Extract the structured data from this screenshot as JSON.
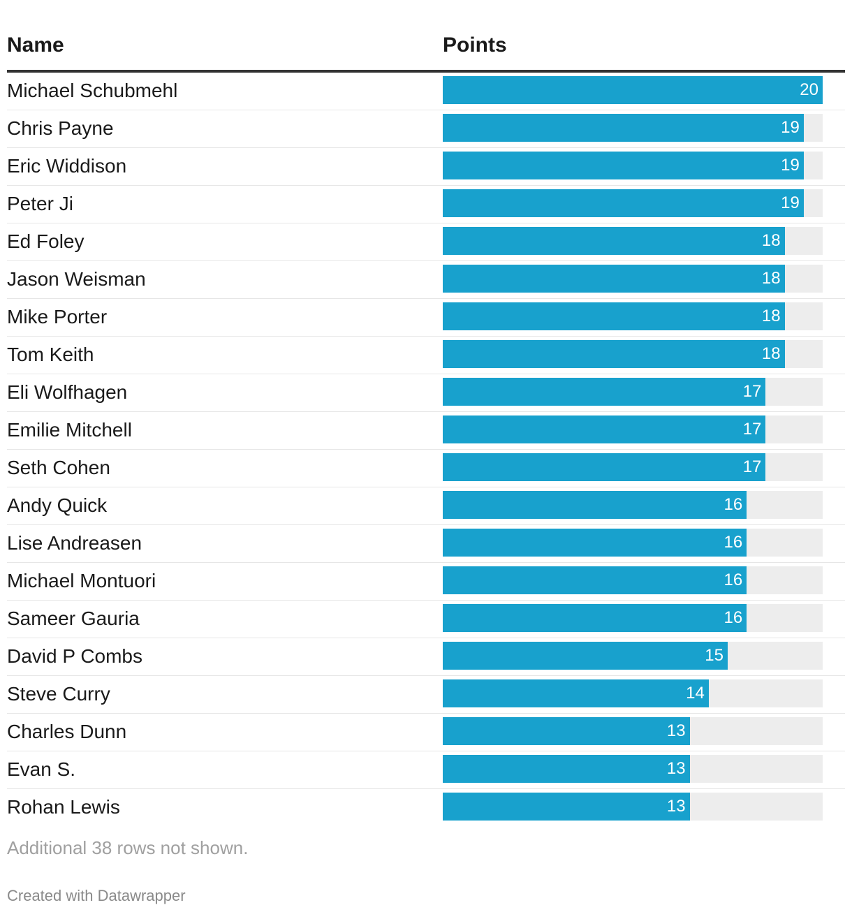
{
  "chart_data": {
    "type": "table",
    "columns": [
      "Name",
      "Points"
    ],
    "max_value": 20,
    "bar_color": "#18a1cd",
    "track_color": "#ededed",
    "rows": [
      {
        "name": "Michael Schubmehl",
        "points": 20
      },
      {
        "name": "Chris Payne",
        "points": 19
      },
      {
        "name": "Eric Widdison",
        "points": 19
      },
      {
        "name": "Peter Ji",
        "points": 19
      },
      {
        "name": "Ed Foley",
        "points": 18
      },
      {
        "name": "Jason Weisman",
        "points": 18
      },
      {
        "name": "Mike Porter",
        "points": 18
      },
      {
        "name": "Tom Keith",
        "points": 18
      },
      {
        "name": "Eli Wolfhagen",
        "points": 17
      },
      {
        "name": "Emilie Mitchell",
        "points": 17
      },
      {
        "name": "Seth Cohen",
        "points": 17
      },
      {
        "name": "Andy Quick",
        "points": 16
      },
      {
        "name": "Lise Andreasen",
        "points": 16
      },
      {
        "name": "Michael Montuori",
        "points": 16
      },
      {
        "name": "Sameer Gauria",
        "points": 16
      },
      {
        "name": "David P Combs",
        "points": 15
      },
      {
        "name": "Steve Curry",
        "points": 14
      },
      {
        "name": "Charles Dunn",
        "points": 13
      },
      {
        "name": "Evan S.",
        "points": 13
      },
      {
        "name": "Rohan Lewis",
        "points": 13
      }
    ]
  },
  "footer": {
    "note": "Additional 38 rows not shown.",
    "credit": "Created with Datawrapper"
  }
}
